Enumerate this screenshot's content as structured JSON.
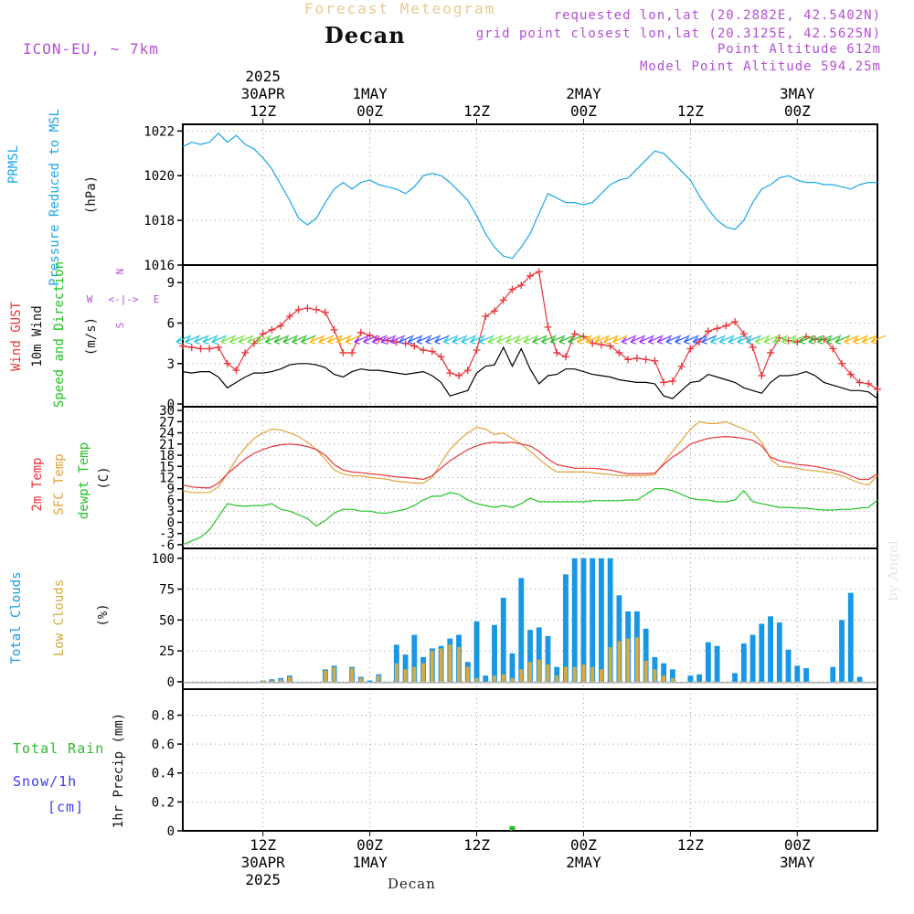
{
  "header": {
    "title": "Forecast Meteogram",
    "location": "Decan",
    "model": "ICON-EU, ~ 7km",
    "requested": "requested lon,lat (20.2882E, 42.5402N)",
    "gridpoint": "grid point closest lon,lat (20.3125E, 42.5625N)",
    "point_altitude": "Point Altitude 612m",
    "model_altitude": "Model Point Altitude 594.25m",
    "credit": "by Angel",
    "footer_location": "Decan"
  },
  "panel_labels": {
    "pressure": [
      "PRMSL",
      "Pressure Reduced to MSL",
      "(hPa)"
    ],
    "wind": [
      "Wind GUST",
      "10m Wind",
      "Speed and Direction",
      "(m/s)"
    ],
    "compass": {
      "n": "N",
      "s": "S",
      "w": "W",
      "e": "E"
    },
    "temp": [
      "2m Temp",
      "SFC Temp",
      "dewpt Temp",
      "(C)"
    ],
    "clouds": [
      "Total Clouds",
      "Low Clouds",
      "(%)"
    ],
    "precip": [
      "Total  Rain",
      "Snow/1h",
      "[cm]",
      "1hr Precip (mm)"
    ]
  },
  "colors": {
    "pressure": "#1aa6e8",
    "gust": "#e8343a",
    "wind": "#000000",
    "temp2m": "#e8343a",
    "sfc": "#e0a33a",
    "dewpt": "#22c322",
    "total_clouds": "#1797e6",
    "low_clouds": "#d8ab3c",
    "rain": "#2eb82e",
    "snow": "#3d3df0",
    "compass": "#b44fd6"
  },
  "chart_data": {
    "type": "line",
    "x_unit": "hours since 2025-04-30 00Z",
    "x_range": [
      3,
      81
    ],
    "time_ticks": [
      {
        "h": 12,
        "top": [
          "2025",
          "30APR",
          "12Z"
        ],
        "bottom": [
          "12Z",
          "30APR",
          "2025"
        ]
      },
      {
        "h": 24,
        "top": [
          "1MAY",
          "00Z"
        ],
        "bottom": [
          "00Z",
          "1MAY"
        ]
      },
      {
        "h": 36,
        "top": [
          "12Z"
        ],
        "bottom": [
          "12Z"
        ]
      },
      {
        "h": 48,
        "top": [
          "2MAY",
          "00Z"
        ],
        "bottom": [
          "00Z",
          "2MAY"
        ]
      },
      {
        "h": 60,
        "top": [
          "12Z"
        ],
        "bottom": [
          "12Z"
        ]
      },
      {
        "h": 72,
        "top": [
          "3MAY",
          "00Z"
        ],
        "bottom": [
          "00Z",
          "3MAY"
        ]
      }
    ],
    "pressure": {
      "ylim": [
        1016,
        1022.3
      ],
      "yticks": [
        1016,
        1018,
        1020,
        1022
      ],
      "x": [
        3,
        4,
        5,
        6,
        7,
        8,
        9,
        10,
        11,
        12,
        13,
        14,
        15,
        16,
        17,
        18,
        19,
        20,
        21,
        22,
        23,
        24,
        25,
        26,
        27,
        28,
        29,
        30,
        31,
        32,
        33,
        34,
        35,
        36,
        37,
        38,
        39,
        40,
        41,
        42,
        43,
        44,
        45,
        46,
        47,
        48,
        49,
        50,
        51,
        52,
        53,
        54,
        55,
        56,
        57,
        58,
        59,
        60,
        61,
        62,
        63,
        64,
        65,
        66,
        67,
        68,
        69,
        70,
        71,
        72,
        73,
        74,
        75,
        76,
        77,
        78,
        79,
        80,
        81
      ],
      "values": [
        1021.3,
        1021.5,
        1021.4,
        1021.5,
        1021.9,
        1021.5,
        1021.8,
        1021.4,
        1021.2,
        1020.8,
        1020.3,
        1019.6,
        1018.9,
        1018.1,
        1017.8,
        1018.1,
        1018.8,
        1019.4,
        1019.7,
        1019.4,
        1019.7,
        1019.8,
        1019.6,
        1019.5,
        1019.4,
        1019.2,
        1019.5,
        1020.0,
        1020.1,
        1020.0,
        1019.7,
        1019.3,
        1018.9,
        1018.2,
        1017.4,
        1016.8,
        1016.4,
        1016.3,
        1016.8,
        1017.4,
        1018.3,
        1019.2,
        1019.0,
        1018.8,
        1018.8,
        1018.7,
        1018.8,
        1019.2,
        1019.6,
        1019.8,
        1019.9,
        1020.3,
        1020.7,
        1021.1,
        1021.0,
        1020.6,
        1020.2,
        1019.8,
        1019.1,
        1018.5,
        1018.0,
        1017.7,
        1017.6,
        1018.0,
        1018.8,
        1019.4,
        1019.6,
        1019.9,
        1020.0,
        1019.8,
        1019.7,
        1019.7,
        1019.6,
        1019.6,
        1019.5,
        1019.4,
        1019.6,
        1019.7,
        1019.7
      ]
    },
    "wind": {
      "ylim": [
        -0.2,
        10.3
      ],
      "yticks": [
        0,
        3,
        6,
        9
      ],
      "x": [
        3,
        4,
        5,
        6,
        7,
        8,
        9,
        10,
        11,
        12,
        13,
        14,
        15,
        16,
        17,
        18,
        19,
        20,
        21,
        22,
        23,
        24,
        25,
        26,
        27,
        28,
        29,
        30,
        31,
        32,
        33,
        34,
        35,
        36,
        37,
        38,
        39,
        40,
        41,
        42,
        43,
        44,
        45,
        46,
        47,
        48,
        49,
        50,
        51,
        52,
        53,
        54,
        55,
        56,
        57,
        58,
        59,
        60,
        61,
        62,
        63,
        64,
        65,
        66,
        67,
        68,
        69,
        70,
        71,
        72,
        73,
        74,
        75,
        76,
        77,
        78,
        79,
        80,
        81
      ],
      "gust": [
        4.3,
        4.2,
        4.1,
        4.1,
        4.2,
        3.0,
        2.5,
        3.8,
        4.5,
        5.2,
        5.5,
        5.8,
        6.5,
        7.0,
        7.1,
        7.0,
        6.8,
        5.5,
        3.8,
        3.8,
        5.3,
        5.1,
        4.8,
        4.7,
        4.6,
        4.5,
        4.3,
        4.0,
        3.9,
        3.5,
        2.3,
        2.1,
        2.5,
        4.0,
        6.5,
        6.9,
        7.7,
        8.5,
        8.8,
        9.5,
        9.8,
        5.7,
        3.8,
        3.5,
        5.2,
        5.0,
        4.5,
        4.4,
        4.3,
        3.8,
        3.3,
        3.4,
        3.3,
        3.2,
        1.6,
        1.7,
        2.8,
        4.1,
        4.6,
        5.4,
        5.6,
        5.8,
        6.1,
        5.2,
        4.2,
        2.1,
        3.8,
        4.9,
        4.7,
        4.6,
        5.0,
        4.8,
        4.8,
        4.1,
        3.0,
        2.2,
        1.6,
        1.5,
        1.1
      ],
      "speed": [
        2.4,
        2.3,
        2.4,
        2.4,
        2.0,
        1.2,
        1.6,
        2.0,
        2.3,
        2.3,
        2.4,
        2.6,
        2.9,
        3.0,
        3.0,
        2.9,
        2.7,
        2.2,
        2.0,
        2.4,
        2.6,
        2.5,
        2.5,
        2.4,
        2.3,
        2.2,
        2.3,
        2.4,
        2.1,
        1.6,
        0.6,
        0.8,
        1.0,
        2.3,
        2.8,
        2.9,
        4.2,
        2.8,
        4.1,
        2.6,
        1.5,
        2.1,
        2.2,
        2.6,
        2.6,
        2.4,
        2.2,
        2.1,
        2.0,
        1.8,
        1.7,
        1.6,
        1.6,
        1.5,
        0.6,
        0.4,
        1.0,
        1.6,
        1.7,
        2.2,
        2.0,
        1.8,
        1.6,
        1.2,
        1.0,
        0.8,
        1.6,
        2.1,
        2.1,
        2.2,
        2.4,
        2.1,
        1.6,
        1.4,
        1.2,
        1.0,
        1.0,
        0.9,
        0.4
      ]
    },
    "temp": {
      "ylim": [
        -7,
        31
      ],
      "yticks": [
        -6,
        -3,
        0,
        3,
        6,
        9,
        12,
        15,
        18,
        21,
        24,
        27,
        30
      ],
      "x": [
        3,
        4,
        5,
        6,
        7,
        8,
        9,
        10,
        11,
        12,
        13,
        14,
        15,
        16,
        17,
        18,
        19,
        20,
        21,
        22,
        23,
        24,
        25,
        26,
        27,
        28,
        29,
        30,
        31,
        32,
        33,
        34,
        35,
        36,
        37,
        38,
        39,
        40,
        41,
        42,
        43,
        44,
        45,
        46,
        47,
        48,
        49,
        50,
        51,
        52,
        53,
        54,
        55,
        56,
        57,
        58,
        59,
        60,
        61,
        62,
        63,
        64,
        65,
        66,
        67,
        68,
        69,
        70,
        71,
        72,
        73,
        74,
        75,
        76,
        77,
        78,
        79,
        80,
        81
      ],
      "t2m": [
        10.0,
        9.5,
        9.3,
        9.2,
        10.5,
        13.0,
        15.0,
        17.0,
        18.5,
        19.5,
        20.3,
        20.8,
        21.0,
        20.8,
        20.3,
        19.5,
        18.0,
        15.5,
        14.0,
        13.5,
        13.3,
        13.0,
        12.8,
        12.5,
        12.2,
        12.0,
        11.8,
        11.5,
        12.5,
        14.5,
        16.5,
        18.0,
        19.5,
        20.5,
        21.2,
        21.5,
        21.3,
        21.5,
        21.0,
        20.5,
        19.0,
        17.0,
        15.5,
        15.0,
        14.5,
        14.5,
        14.5,
        14.3,
        14.0,
        13.5,
        13.0,
        13.0,
        13.0,
        13.2,
        15.5,
        17.5,
        19.0,
        21.0,
        21.8,
        22.5,
        22.8,
        23.0,
        22.8,
        22.5,
        22.0,
        20.5,
        17.5,
        16.5,
        16.0,
        15.5,
        15.3,
        15.0,
        14.5,
        14.0,
        13.5,
        12.5,
        11.5,
        11.5,
        13.0
      ],
      "sfc": [
        8.5,
        8.0,
        8.0,
        8.0,
        9.5,
        13.0,
        17.0,
        20.0,
        22.5,
        24.0,
        25.0,
        24.8,
        24.0,
        23.0,
        21.5,
        19.5,
        17.0,
        14.0,
        13.0,
        12.5,
        12.5,
        12.0,
        11.8,
        11.5,
        11.0,
        10.8,
        10.5,
        10.5,
        12.0,
        16.0,
        19.5,
        22.0,
        24.0,
        25.5,
        25.0,
        23.5,
        24.0,
        22.5,
        21.0,
        19.0,
        17.0,
        15.0,
        13.5,
        13.5,
        13.5,
        13.5,
        13.3,
        13.0,
        12.8,
        12.5,
        12.5,
        12.5,
        12.5,
        12.8,
        16.0,
        19.0,
        22.0,
        25.0,
        27.0,
        26.5,
        26.5,
        27.0,
        26.0,
        25.0,
        24.0,
        21.5,
        17.0,
        15.0,
        14.8,
        14.5,
        14.0,
        13.8,
        13.5,
        13.2,
        12.5,
        11.5,
        10.5,
        10.0,
        12.5
      ],
      "dewpt": [
        -6.0,
        -5.0,
        -4.0,
        -2.0,
        1.5,
        5.0,
        4.5,
        4.3,
        4.5,
        4.5,
        5.0,
        3.5,
        3.0,
        2.0,
        1.0,
        -1.0,
        0.5,
        2.5,
        3.5,
        3.5,
        3.0,
        3.0,
        2.5,
        2.5,
        3.0,
        3.5,
        4.5,
        6.0,
        7.0,
        7.0,
        8.0,
        7.5,
        6.0,
        5.0,
        4.5,
        4.0,
        4.5,
        4.0,
        5.0,
        6.5,
        5.5,
        5.5,
        5.5,
        5.5,
        5.5,
        5.5,
        5.8,
        5.8,
        5.8,
        5.8,
        6.0,
        6.0,
        7.5,
        9.0,
        9.0,
        8.5,
        7.5,
        6.5,
        6.0,
        6.0,
        5.5,
        5.5,
        6.0,
        8.5,
        5.5,
        5.0,
        4.5,
        4.0,
        4.0,
        3.8,
        3.8,
        3.5,
        3.3,
        3.3,
        3.5,
        3.5,
        3.8,
        4.0,
        6.0
      ]
    },
    "clouds": {
      "ylim": [
        -6,
        108
      ],
      "yticks": [
        0,
        25,
        50,
        75,
        100
      ],
      "x": [
        3,
        4,
        5,
        6,
        7,
        8,
        9,
        10,
        11,
        12,
        13,
        14,
        15,
        16,
        17,
        18,
        19,
        20,
        21,
        22,
        23,
        24,
        25,
        26,
        27,
        28,
        29,
        30,
        31,
        32,
        33,
        34,
        35,
        36,
        37,
        38,
        39,
        40,
        41,
        42,
        43,
        44,
        45,
        46,
        47,
        48,
        49,
        50,
        51,
        52,
        53,
        54,
        55,
        56,
        57,
        58,
        59,
        60,
        61,
        62,
        63,
        64,
        65,
        66,
        67,
        68,
        69,
        70,
        71,
        72,
        73,
        74,
        75,
        76,
        77,
        78,
        79,
        80,
        81
      ],
      "total": [
        0,
        0,
        0,
        0,
        0,
        0,
        0,
        0,
        0,
        1,
        2,
        3,
        5,
        0,
        0,
        0,
        10,
        13,
        0,
        12,
        4,
        1,
        6,
        0,
        30,
        22,
        38,
        20,
        27,
        29,
        35,
        38,
        16,
        49,
        5,
        46,
        68,
        23,
        84,
        42,
        44,
        37,
        12,
        87,
        100,
        100,
        100,
        100,
        100,
        70,
        57,
        57,
        43,
        20,
        15,
        10,
        0,
        5,
        6,
        32,
        29,
        0,
        7,
        31,
        38,
        47,
        53,
        48,
        26,
        13,
        11,
        0,
        0,
        12,
        50,
        72,
        4,
        0,
        0
      ],
      "low": [
        0,
        0,
        0,
        0,
        0,
        0,
        0,
        0,
        0,
        1,
        1,
        2,
        4,
        0,
        0,
        0,
        9,
        12,
        0,
        11,
        3,
        0,
        5,
        0,
        15,
        10,
        12,
        15,
        25,
        27,
        30,
        28,
        12,
        3,
        0,
        5,
        6,
        3,
        10,
        16,
        18,
        14,
        5,
        12,
        12,
        14,
        12,
        10,
        28,
        33,
        35,
        36,
        17,
        10,
        5,
        3,
        0,
        0,
        0,
        0,
        0,
        0,
        0,
        0,
        0,
        0,
        0,
        0,
        0,
        0,
        0,
        0,
        0,
        0,
        0,
        0,
        0,
        0,
        0
      ]
    },
    "precip": {
      "ylim": [
        0,
        0.98
      ],
      "yticks": [
        0,
        0.2,
        0.4,
        0.6,
        0.8
      ],
      "rain": [
        {
          "h": 40,
          "v": 0.02
        }
      ],
      "snow": []
    }
  }
}
